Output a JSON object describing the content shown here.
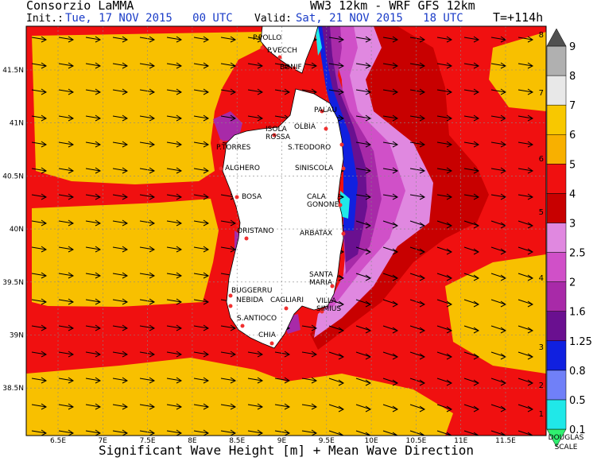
{
  "header": {
    "org": "Consorzio LaMMA",
    "init_label": "Init.:",
    "init": "Tue, 17 NOV 2015   00 UTC",
    "model": "WW3 12km - WRF GFS 12km",
    "valid_label": "Valid:",
    "valid": "Sat, 21 NOV 2015   18 UTC",
    "lead": "T=+114h"
  },
  "map": {
    "lon_ticks": [
      "6.5E",
      "7E",
      "7.5E",
      "8E",
      "8.5E",
      "9E",
      "9.5E",
      "10E",
      "10.5E",
      "11E",
      "11.5E"
    ],
    "lat_ticks": [
      "41.5N",
      "41N",
      "40.5N",
      "40N",
      "39.5N",
      "39N",
      "38.5N"
    ],
    "places": [
      [
        "P.POLLO"
      ],
      [
        "P.VECCH"
      ],
      [
        "BONIF"
      ],
      [
        "PALAU"
      ],
      [
        "ISOLA",
        "ROSSA"
      ],
      [
        "OLBIA"
      ],
      [
        "P.TORRES"
      ],
      [
        "S.TEODORO"
      ],
      [
        "ALGHERO"
      ],
      [
        "SINISCOLA"
      ],
      [
        "BOSA"
      ],
      [
        "CALA",
        "GONONE"
      ],
      [
        "ORISTANO"
      ],
      [
        "ARBATAX"
      ],
      [
        "SANTA",
        "MARIA"
      ],
      [
        "BUGGERRU"
      ],
      [
        "NEBIDA"
      ],
      [
        "CAGLIARI"
      ],
      [
        "VILLA",
        "SIMIUS"
      ],
      [
        "S.ANTIOCO"
      ],
      [
        "CHIA"
      ]
    ]
  },
  "colorbar": {
    "levels": [
      0.1,
      0.5,
      0.8,
      1.25,
      1.6,
      2,
      2.5,
      3,
      4,
      5,
      6,
      7,
      8,
      9
    ],
    "colors": [
      "#30f070",
      "#20e8e8",
      "#7080f8",
      "#1020e0",
      "#6a1090",
      "#a82aa8",
      "#d050c8",
      "#e088e0",
      "#c80000",
      "#f01010",
      "#f8b000",
      "#f8c800",
      "#e8e8e8",
      "#b0b0b0",
      "#888888",
      "#505050"
    ],
    "douglas": [
      1,
      2,
      3,
      4,
      5,
      6,
      7,
      8
    ],
    "douglas_title": [
      "DOUGLAS",
      "SCALE"
    ]
  },
  "footer": "Significant Wave Height [m] + Mean Wave Direction"
}
